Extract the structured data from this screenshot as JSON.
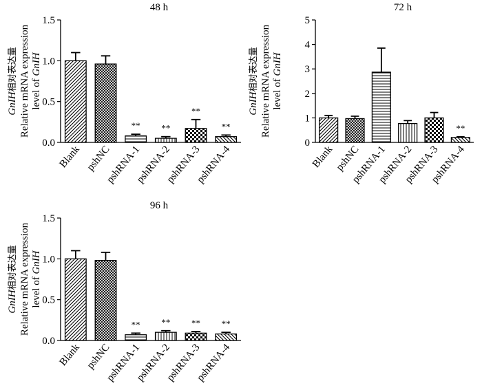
{
  "chart_data": [
    {
      "type": "bar",
      "title": "48 h",
      "categories": [
        "Blank",
        "pshNC",
        "pshRNA-1",
        "pshRNA-2",
        "pshRNA-3",
        "pshRNA-4"
      ],
      "values": [
        1.0,
        0.96,
        0.08,
        0.05,
        0.17,
        0.07
      ],
      "error": [
        0.1,
        0.1,
        0.02,
        0.02,
        0.11,
        0.02
      ],
      "annotations": [
        "",
        "",
        "**",
        "**",
        "**",
        "**"
      ],
      "patterns": [
        "diag-left",
        "crosshatch",
        "horizontal",
        "vertical",
        "checker",
        "diag-right"
      ],
      "ylabel_lines": [
        "GnIH相对表达量",
        "Relative mRNA expression",
        "level of GnIH"
      ],
      "ylim": [
        0,
        1.5
      ],
      "yticks": [
        "0.0",
        "0.5",
        "1.0",
        "1.5"
      ]
    },
    {
      "type": "bar",
      "title": "72 h",
      "categories": [
        "Blank",
        "pshNC",
        "pshRNA-1",
        "pshRNA-2",
        "pshRNA-3",
        "pshRNA-4"
      ],
      "values": [
        1.0,
        0.97,
        2.87,
        0.77,
        1.0,
        0.2
      ],
      "error": [
        0.1,
        0.1,
        0.98,
        0.12,
        0.22,
        0.03
      ],
      "annotations": [
        "",
        "",
        "",
        "",
        "",
        "**"
      ],
      "patterns": [
        "diag-left",
        "crosshatch",
        "horizontal",
        "vertical",
        "checker",
        "diag-right"
      ],
      "ylabel_lines": [
        "GnIH相对表达量",
        "Relative mRNA expression",
        "level of GnIH"
      ],
      "ylim": [
        0,
        5
      ],
      "yticks": [
        "0",
        "1",
        "2",
        "3",
        "4",
        "5"
      ]
    },
    {
      "type": "bar",
      "title": "96 h",
      "categories": [
        "Blank",
        "pshNC",
        "pshRNA-1",
        "pshRNA-2",
        "pshRNA-3",
        "pshRNA-4"
      ],
      "values": [
        1.0,
        0.98,
        0.07,
        0.1,
        0.09,
        0.08
      ],
      "error": [
        0.1,
        0.1,
        0.02,
        0.02,
        0.02,
        0.02
      ],
      "annotations": [
        "",
        "",
        "**",
        "**",
        "**",
        "**"
      ],
      "patterns": [
        "diag-left",
        "crosshatch",
        "horizontal",
        "vertical",
        "checker",
        "diag-right"
      ],
      "ylabel_lines": [
        "GnIH相对表达量",
        "Relative mRNA expression",
        "level of GnIH"
      ],
      "ylim": [
        0,
        1.5
      ],
      "yticks": [
        "0.0",
        "0.5",
        "1.0",
        "1.5"
      ]
    }
  ]
}
